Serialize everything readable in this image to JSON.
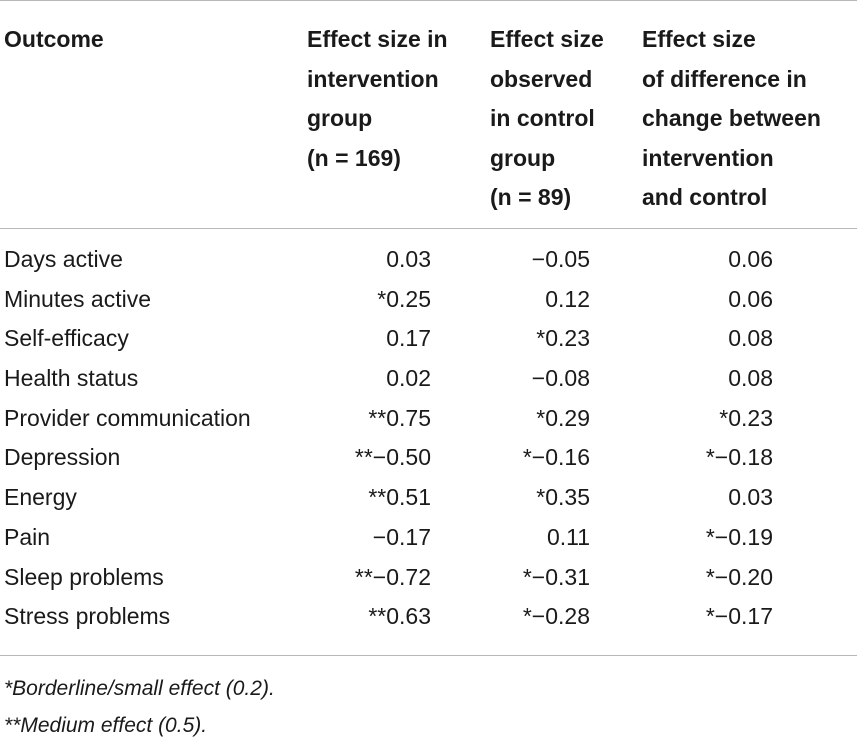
{
  "table": {
    "headers": [
      {
        "lines": [
          "Outcome"
        ]
      },
      {
        "lines": [
          "Effect size in",
          "intervention",
          "group",
          "(n = 169)"
        ]
      },
      {
        "lines": [
          "Effect size",
          "observed",
          "in control",
          "group",
          "(n = 89)"
        ]
      },
      {
        "lines": [
          "Effect size",
          "of difference in",
          "change between",
          "intervention",
          "and control"
        ]
      }
    ],
    "rows": [
      {
        "outcome": "Days active",
        "intervention": "0.03",
        "control": "−0.05",
        "difference": "0.06"
      },
      {
        "outcome": "Minutes active",
        "intervention": "*0.25",
        "control": "0.12",
        "difference": "0.06"
      },
      {
        "outcome": "Self-efficacy",
        "intervention": "0.17",
        "control": "*0.23",
        "difference": "0.08"
      },
      {
        "outcome": "Health status",
        "intervention": "0.02",
        "control": "−0.08",
        "difference": "0.08"
      },
      {
        "outcome": "Provider communication",
        "intervention": "**0.75",
        "control": "*0.29",
        "difference": "*0.23"
      },
      {
        "outcome": "Depression",
        "intervention": "**−0.50",
        "control": "*−0.16",
        "difference": "*−0.18"
      },
      {
        "outcome": "Energy",
        "intervention": "**0.51",
        "control": "*0.35",
        "difference": "0.03"
      },
      {
        "outcome": "Pain",
        "intervention": "−0.17",
        "control": "0.11",
        "difference": "*−0.19"
      },
      {
        "outcome": "Sleep problems",
        "intervention": "**−0.72",
        "control": "*−0.31",
        "difference": "*−0.20"
      },
      {
        "outcome": "Stress problems",
        "intervention": "**0.63",
        "control": "*−0.28",
        "difference": "*−0.17"
      }
    ]
  },
  "footnotes": [
    "*Borderline/small effect (0.2).",
    "**Medium effect (0.5)."
  ]
}
